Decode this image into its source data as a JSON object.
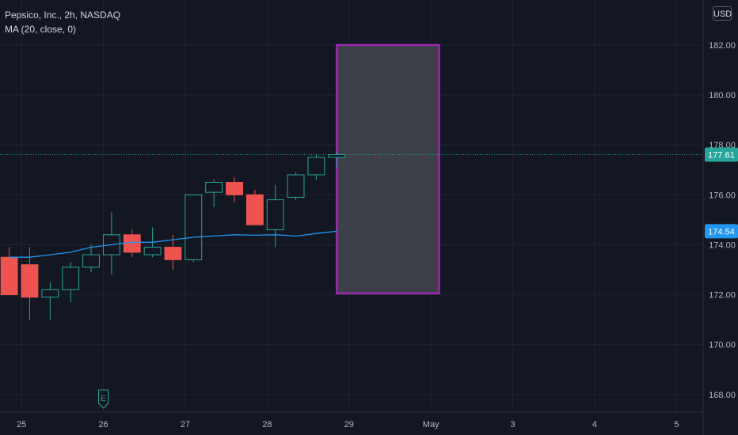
{
  "legend": {
    "symbol_line": "Pepsico, Inc., 2h, NASDAQ",
    "indicator_line": "MA (20, close, 0)"
  },
  "currency_button": "USD",
  "event_marker": "E",
  "colors": {
    "background": "#131722",
    "grid": "#1f2330",
    "up": "#26a69a",
    "down": "#ef5350",
    "ma": "#2196f3",
    "box_border": "#9c27b0",
    "box_fill": "#3d4049",
    "last_price": "#26a69a"
  },
  "chart_data": {
    "type": "candlestick",
    "title": "Pepsico, Inc., 2h, NASDAQ",
    "ylim": [
      167.3,
      183.8
    ],
    "y_ticks": [
      "168.00",
      "170.00",
      "172.00",
      "174.00",
      "176.00",
      "178.00",
      "180.00",
      "182.00"
    ],
    "x_ticks": [
      "25",
      "26",
      "27",
      "28",
      "29",
      "May",
      "3",
      "4",
      "5"
    ],
    "x_tick_positions": [
      0,
      4,
      8,
      12,
      16,
      20,
      24,
      28,
      32
    ],
    "xlim": [
      -1.05,
      33.3
    ],
    "candles": [
      {
        "x": -0.6,
        "o": 173.5,
        "h": 173.9,
        "l": 172.0,
        "c": 172.0
      },
      {
        "x": 0.4,
        "o": 173.2,
        "h": 173.9,
        "l": 171.0,
        "c": 171.9
      },
      {
        "x": 1.4,
        "o": 171.9,
        "h": 172.5,
        "l": 171.0,
        "c": 172.2
      },
      {
        "x": 2.4,
        "o": 172.2,
        "h": 173.3,
        "l": 171.7,
        "c": 173.1
      },
      {
        "x": 3.4,
        "o": 173.1,
        "h": 174.0,
        "l": 172.9,
        "c": 173.6
      },
      {
        "x": 4.4,
        "o": 173.6,
        "h": 175.3,
        "l": 172.8,
        "c": 174.4
      },
      {
        "x": 5.4,
        "o": 174.4,
        "h": 174.6,
        "l": 173.5,
        "c": 173.7
      },
      {
        "x": 6.4,
        "o": 173.6,
        "h": 174.7,
        "l": 173.5,
        "c": 173.9
      },
      {
        "x": 7.4,
        "o": 173.9,
        "h": 174.4,
        "l": 173.0,
        "c": 173.4
      },
      {
        "x": 8.4,
        "o": 173.4,
        "h": 176.0,
        "l": 173.3,
        "c": 176.0
      },
      {
        "x": 9.4,
        "o": 176.1,
        "h": 176.6,
        "l": 175.5,
        "c": 176.5
      },
      {
        "x": 10.4,
        "o": 176.5,
        "h": 176.7,
        "l": 175.7,
        "c": 176.0
      },
      {
        "x": 11.4,
        "o": 176.0,
        "h": 176.2,
        "l": 174.8,
        "c": 174.8
      },
      {
        "x": 12.4,
        "o": 174.6,
        "h": 176.4,
        "l": 173.9,
        "c": 175.8
      },
      {
        "x": 13.4,
        "o": 175.9,
        "h": 176.9,
        "l": 175.8,
        "c": 176.8
      },
      {
        "x": 14.4,
        "o": 176.8,
        "h": 177.6,
        "l": 176.6,
        "c": 177.5
      },
      {
        "x": 15.4,
        "o": 177.5,
        "h": 177.7,
        "l": 177.1,
        "c": 177.61
      }
    ],
    "series": [
      {
        "name": "MA (20, close, 0)",
        "x": [
          -0.6,
          0.4,
          1.4,
          2.4,
          3.4,
          4.4,
          5.4,
          6.4,
          7.4,
          8.4,
          9.4,
          10.4,
          11.4,
          12.4,
          13.4,
          14.4,
          15.4
        ],
        "values": [
          173.5,
          173.5,
          173.6,
          173.7,
          173.9,
          174.0,
          174.1,
          174.1,
          174.2,
          174.3,
          174.35,
          174.4,
          174.38,
          174.4,
          174.35,
          174.45,
          174.54
        ]
      }
    ],
    "rectangle": {
      "x0": 15.4,
      "x1": 20.4,
      "y0": 172.05,
      "y1": 182.0
    },
    "last_price": {
      "value": 177.61,
      "label": "177.61"
    },
    "ma_last": {
      "value": 174.54,
      "label": "174.54"
    },
    "event": {
      "x": 4.0
    }
  }
}
